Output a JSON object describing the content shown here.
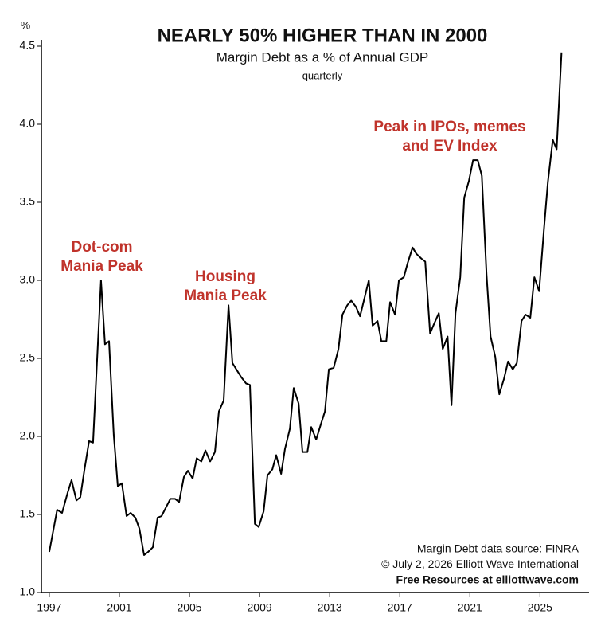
{
  "chart_data": {
    "type": "line",
    "title": "NEARLY 50% HIGHER THAN IN 2000",
    "subtitle": "Margin Debt as a % of Annual GDP",
    "note": "quarterly",
    "y_label": "%",
    "annotations": [
      [
        "Dot-com",
        "Mania Peak"
      ],
      [
        "Housing",
        "Mania Peak"
      ],
      [
        "Peak in IPOs, memes",
        "and EV Index"
      ]
    ],
    "source": [
      "Margin Debt data source: FINRA",
      "© July 2, 2026  Elliott Wave International",
      "Free Resources at elliottwave.com"
    ],
    "color": "#000000",
    "annotation_color": "#c0332b",
    "xlim": [
      1996.55,
      2027.8
    ],
    "ylim": [
      1,
      4.5
    ],
    "xticks": [
      1997,
      2001,
      2005,
      2009,
      2013,
      2017,
      2021,
      2025
    ],
    "yticks": [
      {
        "value": 1,
        "label": "1.0"
      },
      1.5,
      {
        "value": 2,
        "label": "2.0"
      },
      2.5,
      {
        "value": 3,
        "label": "3.0"
      },
      3.5,
      {
        "value": 4,
        "label": "4.0"
      },
      4.5
    ],
    "x": [
      1997.0,
      1997.45,
      1997.73,
      1998.05,
      1998.27,
      1998.55,
      1998.77,
      1999.0,
      1999.27,
      1999.5,
      1999.95,
      2000.18,
      2000.41,
      2000.68,
      2000.91,
      2001.14,
      2001.41,
      2001.64,
      2001.91,
      2002.14,
      2002.41,
      2002.64,
      2002.91,
      2003.18,
      2003.41,
      2003.68,
      2003.91,
      2004.18,
      2004.41,
      2004.68,
      2004.91,
      2005.18,
      2005.41,
      2005.68,
      2005.91,
      2006.18,
      2006.45,
      2006.68,
      2006.95,
      2007.23,
      2007.45,
      2007.73,
      2007.95,
      2008.23,
      2008.45,
      2008.73,
      2008.95,
      2009.23,
      2009.45,
      2009.73,
      2009.95,
      2010.23,
      2010.45,
      2010.73,
      2010.95,
      2011.23,
      2011.45,
      2011.73,
      2011.95,
      2012.23,
      2012.5,
      2012.73,
      2012.95,
      2013.23,
      2013.5,
      2013.73,
      2014.0,
      2014.23,
      2014.5,
      2014.73,
      2014.95,
      2015.23,
      2015.45,
      2015.73,
      2015.95,
      2016.23,
      2016.45,
      2016.73,
      2016.95,
      2017.23,
      2017.45,
      2017.73,
      2017.95,
      2018.23,
      2018.45,
      2018.73,
      2018.95,
      2019.23,
      2019.45,
      2019.73,
      2019.95,
      2020.18,
      2020.45,
      2020.68,
      2020.95,
      2021.18,
      2021.45,
      2021.68,
      2021.95,
      2022.18,
      2022.45,
      2022.68,
      2022.95,
      2023.18,
      2023.45,
      2023.68,
      2023.95,
      2024.18,
      2024.45,
      2024.68,
      2024.95,
      2025.23,
      2025.45,
      2025.73,
      2025.95,
      2026.23
    ],
    "values": [
      1.26,
      1.53,
      1.51,
      1.64,
      1.72,
      1.59,
      1.61,
      1.78,
      1.97,
      1.96,
      3.0,
      2.59,
      2.61,
      2.01,
      1.68,
      1.7,
      1.49,
      1.51,
      1.48,
      1.41,
      1.24,
      1.26,
      1.29,
      1.48,
      1.49,
      1.55,
      1.6,
      1.6,
      1.58,
      1.74,
      1.78,
      1.73,
      1.86,
      1.84,
      1.91,
      1.84,
      1.9,
      2.16,
      2.23,
      2.84,
      2.47,
      2.42,
      2.38,
      2.34,
      2.33,
      1.44,
      1.42,
      1.52,
      1.75,
      1.79,
      1.88,
      1.76,
      1.92,
      2.05,
      2.31,
      2.21,
      1.9,
      1.9,
      2.06,
      1.98,
      2.08,
      2.16,
      2.43,
      2.44,
      2.56,
      2.78,
      2.84,
      2.87,
      2.83,
      2.77,
      2.87,
      3.0,
      2.71,
      2.74,
      2.61,
      2.61,
      2.86,
      2.78,
      3.0,
      3.02,
      3.11,
      3.21,
      3.17,
      3.14,
      3.12,
      2.66,
      2.72,
      2.79,
      2.56,
      2.64,
      2.2,
      2.79,
      3.02,
      3.53,
      3.64,
      3.77,
      3.77,
      3.67,
      3.04,
      2.64,
      2.51,
      2.27,
      2.37,
      2.48,
      2.43,
      2.47,
      2.74,
      2.78,
      2.76,
      3.02,
      2.93,
      3.33,
      3.63,
      3.9,
      3.84,
      4.46
    ]
  }
}
